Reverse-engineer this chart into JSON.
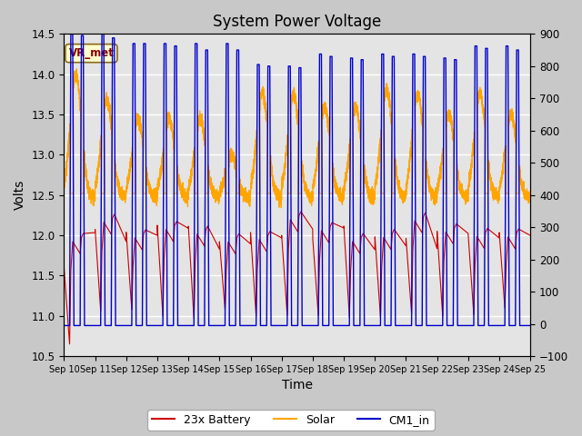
{
  "title": "System Power Voltage",
  "xlabel": "Time",
  "ylabel_left": "Volts",
  "ylabel_right": "",
  "ylim_left": [
    10.5,
    14.5
  ],
  "ylim_right": [
    -100,
    900
  ],
  "yticks_left": [
    10.5,
    11.0,
    11.5,
    12.0,
    12.5,
    13.0,
    13.5,
    14.0,
    14.5
  ],
  "yticks_right": [
    -100,
    0,
    100,
    200,
    300,
    400,
    500,
    600,
    700,
    800,
    900
  ],
  "xtick_labels": [
    "Sep 10",
    "Sep 11",
    "Sep 12",
    "Sep 13",
    "Sep 14",
    "Sep 15",
    "Sep 16",
    "Sep 17",
    "Sep 18",
    "Sep 19",
    "Sep 20",
    "Sep 21",
    "Sep 22",
    "Sep 23",
    "Sep 24",
    "Sep 25"
  ],
  "legend_labels": [
    "23x Battery",
    "Solar",
    "CM1_in"
  ],
  "legend_colors": [
    "#cc0000",
    "#ffa500",
    "#0000cc"
  ],
  "vr_met_label": "VR_met",
  "background_color": "#e8e8e8",
  "grid_color": "#ffffff",
  "n_days": 15,
  "title_fontsize": 12,
  "axis_label_fontsize": 10
}
